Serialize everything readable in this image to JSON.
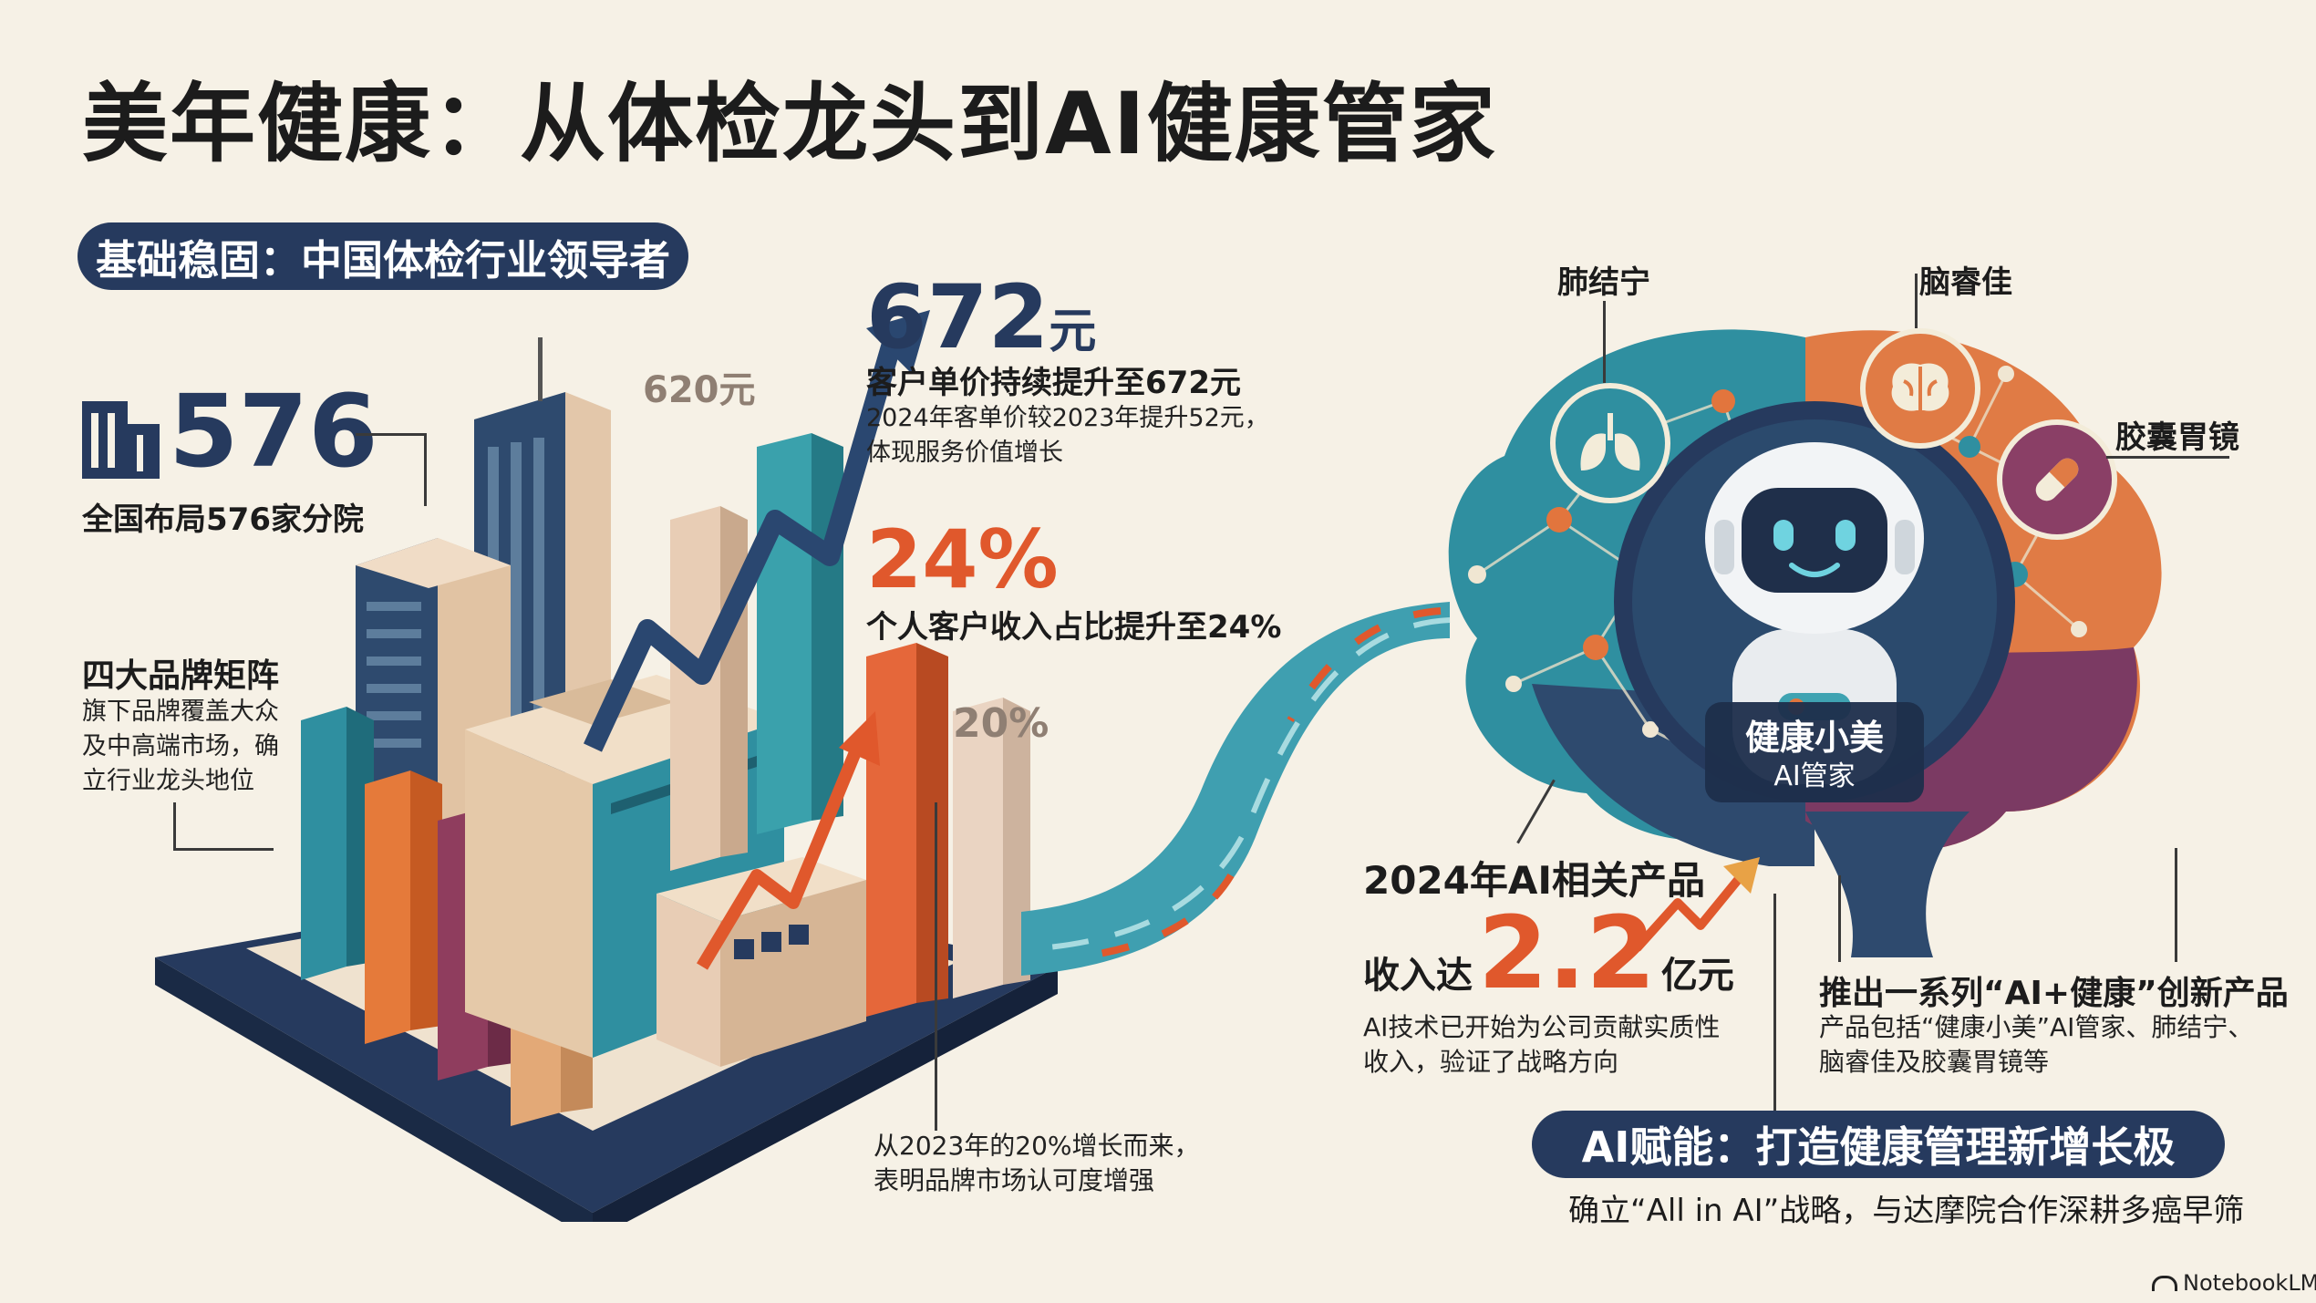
{
  "title": "美年健康：从体检龙头到AI健康管家",
  "left_section": {
    "header": "基础稳固：中国体检行业领导者",
    "branches": {
      "value": "576",
      "label": "全国布局576家分院"
    },
    "brands": {
      "title": "四大品牌矩阵",
      "desc_lines": [
        "旗下品牌覆盖大众",
        "及中高端市场，确",
        "立行业龙头地位"
      ]
    },
    "price": {
      "prev": "620元",
      "value": "672",
      "unit": "元",
      "headline": "客户单价持续提升至672元",
      "desc_lines": [
        "2024年客单价较2023年提升52元，",
        "体现服务价值增长"
      ]
    },
    "share": {
      "value": "24%",
      "headline": "个人客户收入占比提升至24%",
      "prev": "20%",
      "desc_lines": [
        "从2023年的20%增长而来，",
        "表明品牌市场认可度增强"
      ]
    }
  },
  "right_section": {
    "products": {
      "p1": "肺结宁",
      "p2": "脑睿佳",
      "p3": "胶囊胃镜"
    },
    "robot": {
      "name": "健康小美",
      "role": "AI管家"
    },
    "ai_revenue": {
      "line1": "2024年AI相关产品",
      "prefix": "收入达",
      "value": "2.2",
      "unit": "亿元",
      "desc_lines": [
        "AI技术已开始为公司贡献实质性",
        "收入，验证了战略方向"
      ]
    },
    "launch": {
      "headline": "推出一系列“AI+健康”创新产品",
      "desc_lines": [
        "产品包括“健康小美”AI管家、肺结宁、",
        "脑睿佳及胶囊胃镜等"
      ]
    },
    "banner": "AI赋能：打造健康管理新增长极",
    "banner_sub": "确立“All in AI”战略，与达摩院合作深耕多癌早筛"
  },
  "watermark": "NotebookLM",
  "colors": {
    "navy": "#263a5e",
    "orange": "#e0582c",
    "teal": "#2f8fa0",
    "background": "#f6f1e6"
  }
}
